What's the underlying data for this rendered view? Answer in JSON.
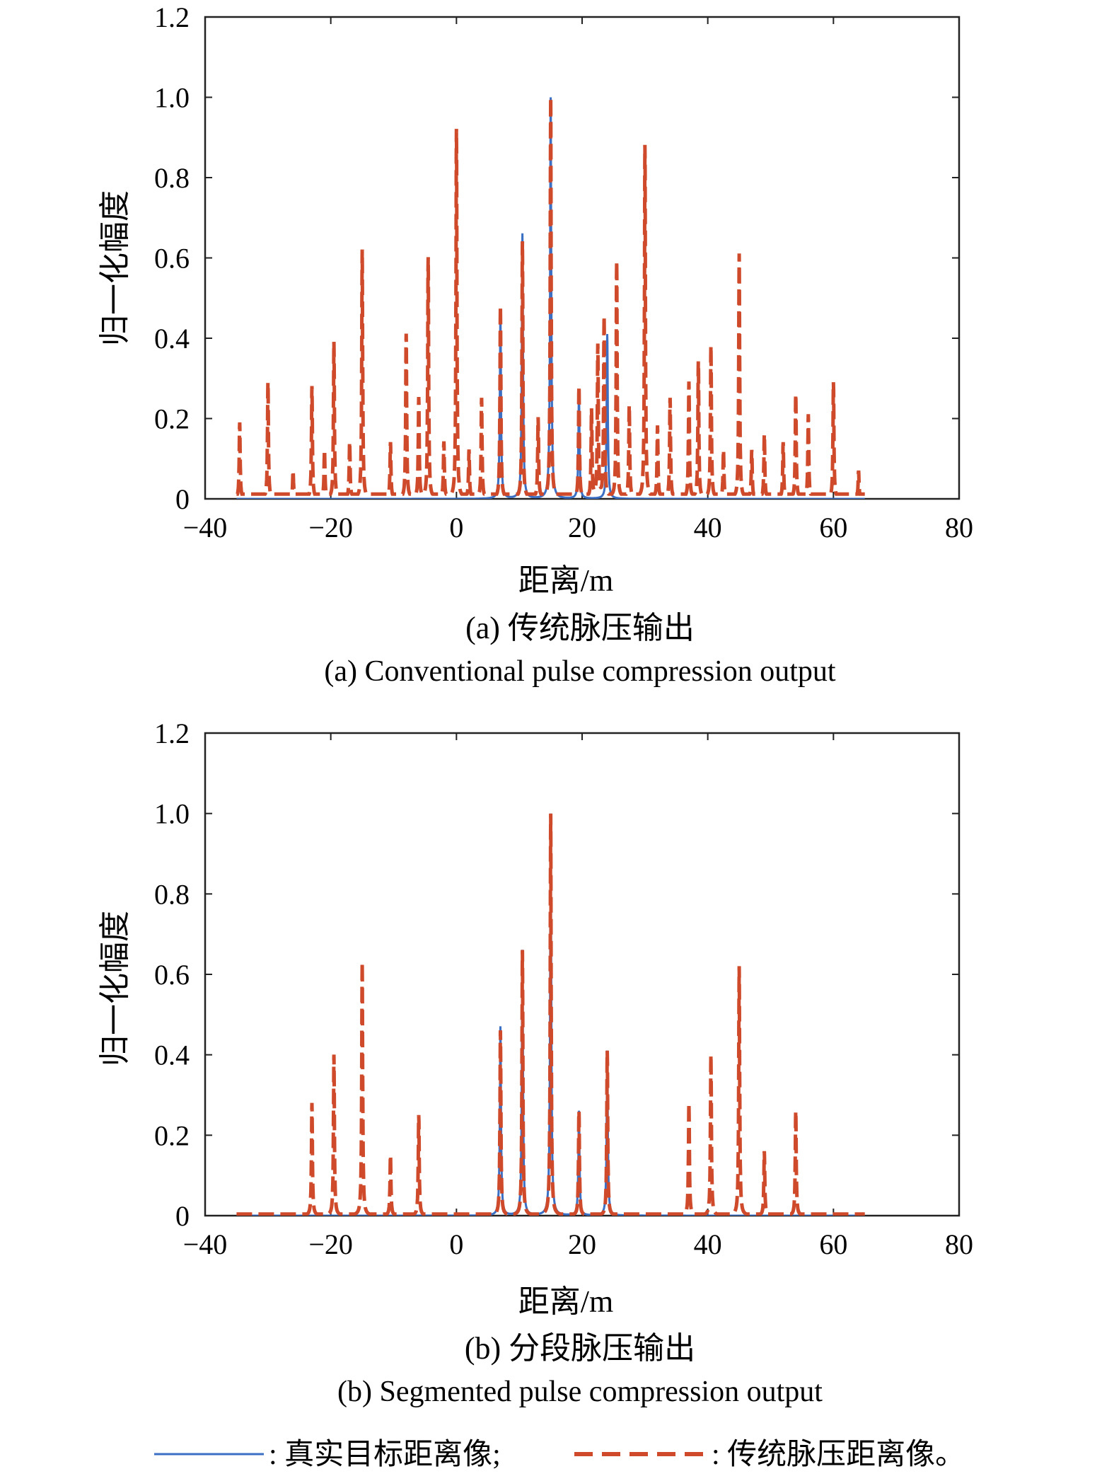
{
  "colors": {
    "true_profile": "#3a6fc4",
    "conventional": "#cf4a2a",
    "axis": "#222222"
  },
  "legend": {
    "true_label": ": 真实目标距离像;",
    "conv_label": ": 传统脉压距离像。"
  },
  "chart_data": [
    {
      "type": "line",
      "caption_cn": "(a) 传统脉压输出",
      "caption_en": "(a) Conventional pulse compression output",
      "xlabel": "距离/m",
      "ylabel": "归一化幅度",
      "xlim": [
        -40,
        80
      ],
      "ylim": [
        0,
        1.2
      ],
      "xticks": [
        -40,
        -20,
        0,
        20,
        40,
        60,
        80
      ],
      "xtick_labels": [
        "−40",
        "−20",
        "0",
        "20",
        "40",
        "60",
        "80"
      ],
      "yticks": [
        0,
        0.2,
        0.4,
        0.6,
        0.8,
        1.0,
        1.2
      ],
      "ytick_labels": [
        "0",
        "0.2",
        "0.4",
        "0.6",
        "0.8",
        "1.0",
        "1.2"
      ],
      "x_range": [
        -35,
        65
      ],
      "series": [
        {
          "name": "真实目标距离像",
          "style": "solid",
          "peaks": [
            {
              "x": 7,
              "y": 0.46
            },
            {
              "x": 10.5,
              "y": 0.66
            },
            {
              "x": 15,
              "y": 1.0
            },
            {
              "x": 19.5,
              "y": 0.26
            },
            {
              "x": 24,
              "y": 0.41
            }
          ]
        },
        {
          "name": "传统脉压距离像",
          "style": "dashed",
          "peaks": [
            {
              "x": -34.5,
              "y": 0.19
            },
            {
              "x": -30,
              "y": 0.29
            },
            {
              "x": -26,
              "y": 0.07
            },
            {
              "x": -23,
              "y": 0.28
            },
            {
              "x": -21,
              "y": 0.12
            },
            {
              "x": -19.5,
              "y": 0.39
            },
            {
              "x": -17,
              "y": 0.14
            },
            {
              "x": -15,
              "y": 0.62
            },
            {
              "x": -10.5,
              "y": 0.14
            },
            {
              "x": -8,
              "y": 0.41
            },
            {
              "x": -6,
              "y": 0.25
            },
            {
              "x": -4.5,
              "y": 0.6
            },
            {
              "x": -2,
              "y": 0.14
            },
            {
              "x": 0,
              "y": 0.92
            },
            {
              "x": 2,
              "y": 0.12
            },
            {
              "x": 4,
              "y": 0.25
            },
            {
              "x": 7,
              "y": 0.48
            },
            {
              "x": 10.5,
              "y": 0.64
            },
            {
              "x": 13,
              "y": 0.2
            },
            {
              "x": 15,
              "y": 1.0
            },
            {
              "x": 19.5,
              "y": 0.28
            },
            {
              "x": 21.5,
              "y": 0.22
            },
            {
              "x": 22.5,
              "y": 0.38
            },
            {
              "x": 23.5,
              "y": 0.45
            },
            {
              "x": 25.5,
              "y": 0.59
            },
            {
              "x": 27.5,
              "y": 0.23
            },
            {
              "x": 30,
              "y": 0.88
            },
            {
              "x": 32,
              "y": 0.18
            },
            {
              "x": 34,
              "y": 0.25
            },
            {
              "x": 37,
              "y": 0.29
            },
            {
              "x": 38.5,
              "y": 0.34
            },
            {
              "x": 40.5,
              "y": 0.38
            },
            {
              "x": 42.5,
              "y": 0.12
            },
            {
              "x": 45,
              "y": 0.61
            },
            {
              "x": 47,
              "y": 0.12
            },
            {
              "x": 49,
              "y": 0.16
            },
            {
              "x": 52,
              "y": 0.14
            },
            {
              "x": 54,
              "y": 0.26
            },
            {
              "x": 56,
              "y": 0.21
            },
            {
              "x": 60,
              "y": 0.29
            },
            {
              "x": 64,
              "y": 0.07
            }
          ]
        }
      ]
    },
    {
      "type": "line",
      "caption_cn": "(b) 分段脉压输出",
      "caption_en": "(b) Segmented pulse compression output",
      "xlabel": "距离/m",
      "ylabel": "归一化幅度",
      "xlim": [
        -40,
        80
      ],
      "ylim": [
        0,
        1.2
      ],
      "xticks": [
        -40,
        -20,
        0,
        20,
        40,
        60,
        80
      ],
      "xtick_labels": [
        "−40",
        "−20",
        "0",
        "20",
        "40",
        "60",
        "80"
      ],
      "yticks": [
        0,
        0.2,
        0.4,
        0.6,
        0.8,
        1.0,
        1.2
      ],
      "ytick_labels": [
        "0",
        "0.2",
        "0.4",
        "0.6",
        "0.8",
        "1.0",
        "1.2"
      ],
      "x_range": [
        -35,
        65
      ],
      "series": [
        {
          "name": "真实目标距离像",
          "style": "solid",
          "peaks": [
            {
              "x": 7,
              "y": 0.47
            },
            {
              "x": 10.5,
              "y": 0.66
            },
            {
              "x": 15,
              "y": 1.0
            },
            {
              "x": 19.5,
              "y": 0.26
            },
            {
              "x": 24,
              "y": 0.41
            }
          ]
        },
        {
          "name": "传统脉压距离像",
          "style": "dashed",
          "peaks": [
            {
              "x": -23,
              "y": 0.28
            },
            {
              "x": -19.5,
              "y": 0.4
            },
            {
              "x": -15,
              "y": 0.63
            },
            {
              "x": -10.5,
              "y": 0.15
            },
            {
              "x": -6,
              "y": 0.25
            },
            {
              "x": 7,
              "y": 0.46
            },
            {
              "x": 10.5,
              "y": 0.66
            },
            {
              "x": 15,
              "y": 1.0
            },
            {
              "x": 19.5,
              "y": 0.26
            },
            {
              "x": 24,
              "y": 0.41
            },
            {
              "x": 37,
              "y": 0.28
            },
            {
              "x": 40.5,
              "y": 0.4
            },
            {
              "x": 45,
              "y": 0.62
            },
            {
              "x": 49,
              "y": 0.16
            },
            {
              "x": 54,
              "y": 0.26
            }
          ]
        }
      ]
    }
  ]
}
